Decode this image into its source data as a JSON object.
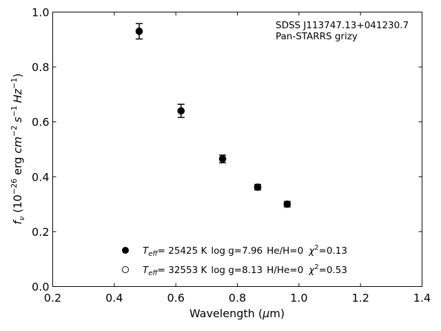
{
  "chart_data": {
    "type": "scatter",
    "xlabel": {
      "main": "Wavelength (",
      "mu": "μ",
      "unit": "m)"
    },
    "ylabel": {
      "f": "f",
      "nu": "ν",
      "open": " (10",
      "exp1": "−26",
      "erg": " erg ",
      "cm": "cm",
      "exp2": "−2",
      "s": "s",
      "exp3": "−1",
      "hz": "Hz",
      "exp4": "−1",
      "close": ")"
    },
    "xlim": [
      0.2,
      1.4
    ],
    "ylim": [
      0.0,
      1.0
    ],
    "xticks": [
      "0.2",
      "0.4",
      "0.6",
      "0.8",
      "1.0",
      "1.2",
      "1.4"
    ],
    "yticks": [
      "0.0",
      "0.2",
      "0.4",
      "0.6",
      "0.8",
      "1.0"
    ],
    "annotation": [
      "SDSS J113747.13+041230.7",
      "Pan-STARRS grizy"
    ],
    "series": [
      {
        "marker": "filled",
        "x": [
          0.481,
          0.617,
          0.752,
          0.866,
          0.962
        ],
        "y": [
          0.93,
          0.64,
          0.465,
          0.362,
          0.3
        ],
        "err": [
          0.028,
          0.024,
          0.014,
          0.01,
          0.01
        ]
      }
    ],
    "legend": [
      {
        "marker": "filled",
        "teff_label": "T",
        "teff_sub": "eff",
        "teff_value": "= 25425 K",
        "logg": "log g=7.96",
        "comp": "He/H=0",
        "chi": "χ",
        "chi_exp": "2",
        "chi_value": "=0.13"
      },
      {
        "marker": "open",
        "teff_label": "T",
        "teff_sub": "eff",
        "teff_value": "= 32553 K",
        "logg": "log g=8.13",
        "comp": "H/He=0",
        "chi": "χ",
        "chi_exp": "2",
        "chi_value": "=0.53"
      }
    ]
  }
}
